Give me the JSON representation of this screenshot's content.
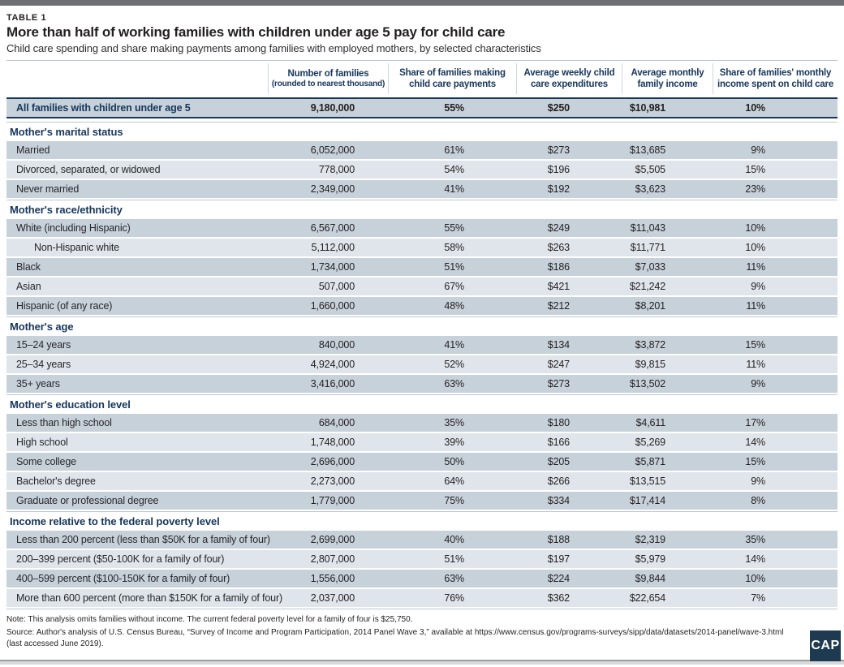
{
  "header": {
    "table_label": "TABLE 1"
  },
  "chart_data": {
    "type": "table",
    "title": "More than half of working families with children under age 5 pay for child care",
    "subtitle": "Child care spending and share making payments among families with employed mothers, by selected characteristics",
    "columns": [
      {
        "label": ""
      },
      {
        "label": "Number of families",
        "sublabel": "(rounded to nearest thousand)"
      },
      {
        "label": "Share of families making child care payments"
      },
      {
        "label": "Average weekly child care expenditures"
      },
      {
        "label": "Average monthly family income"
      },
      {
        "label": "Share of families' monthly income spent on child care"
      }
    ],
    "rows": [
      {
        "type": "total",
        "label": "All families with children under age 5",
        "values": [
          "9,180,000",
          "55%",
          "$250",
          "$10,981",
          "10%"
        ]
      },
      {
        "type": "section",
        "label": "Mother's marital status"
      },
      {
        "type": "data",
        "label": "Married",
        "values": [
          "6,052,000",
          "61%",
          "$273",
          "$13,685",
          "9%"
        ]
      },
      {
        "type": "data",
        "label": "Divorced, separated, or widowed",
        "values": [
          "778,000",
          "54%",
          "$196",
          "$5,505",
          "15%"
        ]
      },
      {
        "type": "data",
        "label": "Never married",
        "values": [
          "2,349,000",
          "41%",
          "$192",
          "$3,623",
          "23%"
        ]
      },
      {
        "type": "section",
        "label": "Mother's race/ethnicity"
      },
      {
        "type": "data",
        "label": "White (including Hispanic)",
        "values": [
          "6,567,000",
          "55%",
          "$249",
          "$11,043",
          "10%"
        ]
      },
      {
        "type": "data",
        "indent": true,
        "label": "Non-Hispanic white",
        "values": [
          "5,112,000",
          "58%",
          "$263",
          "$11,771",
          "10%"
        ]
      },
      {
        "type": "data",
        "label": "Black",
        "values": [
          "1,734,000",
          "51%",
          "$186",
          "$7,033",
          "11%"
        ]
      },
      {
        "type": "data",
        "label": "Asian",
        "values": [
          "507,000",
          "67%",
          "$421",
          "$21,242",
          "9%"
        ]
      },
      {
        "type": "data",
        "label": "Hispanic (of any race)",
        "values": [
          "1,660,000",
          "48%",
          "$212",
          "$8,201",
          "11%"
        ]
      },
      {
        "type": "section",
        "label": "Mother's age"
      },
      {
        "type": "data",
        "label": "15–24 years",
        "values": [
          "840,000",
          "41%",
          "$134",
          "$3,872",
          "15%"
        ]
      },
      {
        "type": "data",
        "label": "25–34 years",
        "values": [
          "4,924,000",
          "52%",
          "$247",
          "$9,815",
          "11%"
        ]
      },
      {
        "type": "data",
        "label": "35+ years",
        "values": [
          "3,416,000",
          "63%",
          "$273",
          "$13,502",
          "9%"
        ]
      },
      {
        "type": "section",
        "label": "Mother's education level"
      },
      {
        "type": "data",
        "label": "Less than high school",
        "values": [
          "684,000",
          "35%",
          "$180",
          "$4,611",
          "17%"
        ]
      },
      {
        "type": "data",
        "label": "High school",
        "values": [
          "1,748,000",
          "39%",
          "$166",
          "$5,269",
          "14%"
        ]
      },
      {
        "type": "data",
        "label": "Some college",
        "values": [
          "2,696,000",
          "50%",
          "$205",
          "$5,871",
          "15%"
        ]
      },
      {
        "type": "data",
        "label": "Bachelor's degree",
        "values": [
          "2,273,000",
          "64%",
          "$266",
          "$13,515",
          "9%"
        ]
      },
      {
        "type": "data",
        "label": "Graduate or professional degree",
        "values": [
          "1,779,000",
          "75%",
          "$334",
          "$17,414",
          "8%"
        ]
      },
      {
        "type": "section",
        "label": "Income relative to the federal poverty level"
      },
      {
        "type": "data",
        "label": "Less than 200 percent (less than $50K for a family of four)",
        "values": [
          "2,699,000",
          "40%",
          "$188",
          "$2,319",
          "35%"
        ]
      },
      {
        "type": "data",
        "label": "200–399 percent ($50-100K for a family of four)",
        "values": [
          "2,807,000",
          "51%",
          "$197",
          "$5,979",
          "14%"
        ]
      },
      {
        "type": "data",
        "label": "400–599 percent ($100-150K for a family of four)",
        "values": [
          "1,556,000",
          "63%",
          "$224",
          "$9,844",
          "10%"
        ]
      },
      {
        "type": "data",
        "label": "More than 600 percent (more than $150K for a family of four)",
        "values": [
          "2,037,000",
          "76%",
          "$362",
          "$22,654",
          "7%"
        ]
      }
    ]
  },
  "footer": {
    "note": "Note: This analysis omits families without income. The current federal poverty level for a family of four is $25,750.",
    "source": "Source: Author's analysis of U.S. Census Bureau, “Survey of Income and Program Participation, 2014 Panel Wave 3,” available at https://www.census.gov/programs-surveys/sipp/data/datasets/2014-panel/wave-3.html (last accessed June 2019).",
    "logo_text": "CAP"
  },
  "colors": {
    "navy": "#17365c",
    "band_dark": "#c7d1da",
    "band_light": "#dfe5ea",
    "hairline": "#b9c6d2",
    "logo_bg": "#1e3a50",
    "topbar": "#6e6f72"
  }
}
